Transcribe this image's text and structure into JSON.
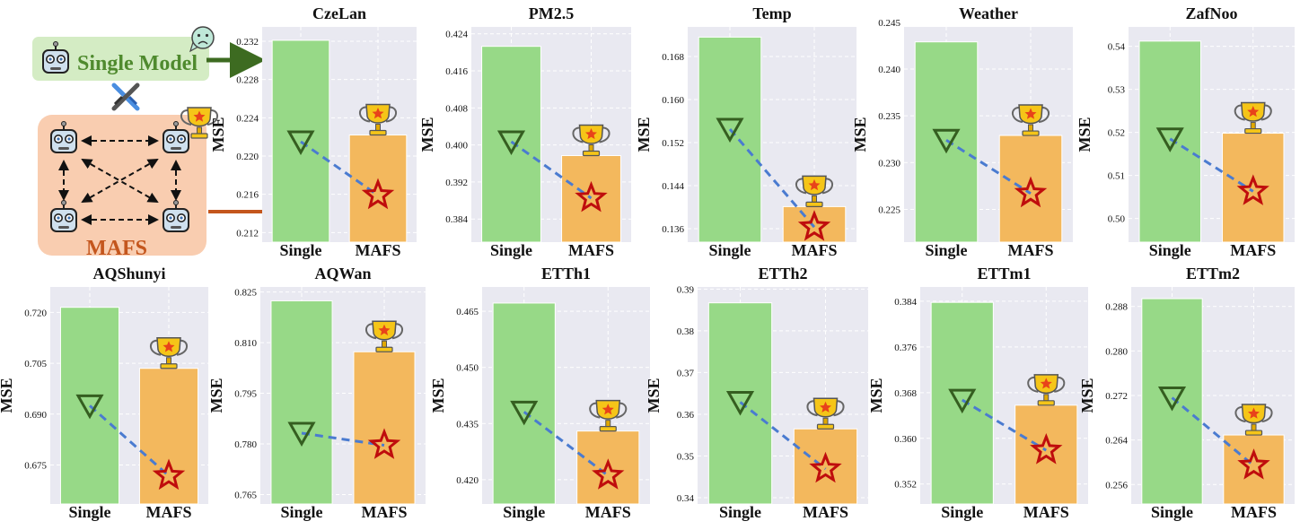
{
  "diagram": {
    "single_label": "Single Model",
    "mafs_label": "MAFS",
    "colors": {
      "single_box": "#d4ecc4",
      "single_text": "#4f8a2e",
      "mafs_box": "#f9cdb0",
      "mafs_text": "#c4561d",
      "arrow_single": "#3d6b21",
      "arrow_mafs": "#c4561d"
    },
    "icons": [
      "robot-icon",
      "sad-face-icon",
      "crossed-swords-icon",
      "trophy-icon"
    ]
  },
  "colors": {
    "single_bar": "#97d987",
    "mafs_bar": "#f3b85d",
    "plot_bg": "#e9e9f1",
    "triangle": "#355e20",
    "star": "#bf0d0d",
    "dashed_line": "#4a7bd0"
  },
  "chart_data": [
    {
      "type": "bar",
      "title": "CzeLan",
      "ylabel": "MSE",
      "categories": [
        "Single",
        "MAFS"
      ],
      "values": [
        0.2321,
        0.2222
      ],
      "ylim": [
        0.211,
        0.2335
      ],
      "yticks": [
        "0.212",
        "0.216",
        "0.220",
        "0.224",
        "0.228",
        "0.232"
      ],
      "markers": {
        "triangle": 0.2215,
        "star": 0.2159
      }
    },
    {
      "type": "bar",
      "title": "PM2.5",
      "ylabel": "MSE",
      "categories": [
        "Single",
        "MAFS"
      ],
      "values": [
        0.4213,
        0.3977
      ],
      "ylim": [
        0.379,
        0.4255
      ],
      "yticks": [
        "0.384",
        "0.392",
        "0.400",
        "0.408",
        "0.416",
        "0.424"
      ],
      "markers": {
        "triangle": 0.4007,
        "star": 0.3885
      }
    },
    {
      "type": "bar",
      "title": "Temp",
      "ylabel": "MSE",
      "categories": [
        "Single",
        "MAFS"
      ],
      "values": [
        0.1716,
        0.1401
      ],
      "ylim": [
        0.1335,
        0.1735
      ],
      "yticks": [
        "0.136",
        "0.144",
        "0.152",
        "0.160",
        "0.168"
      ],
      "markers": {
        "triangle": 0.1545,
        "star": 0.1363
      }
    },
    {
      "type": "bar",
      "title": "Weather",
      "ylabel": "MSE",
      "categories": [
        "Single",
        "MAFS"
      ],
      "values": [
        0.2429,
        0.2329
      ],
      "ylim": [
        0.2215,
        0.2445
      ],
      "yticks": [
        "0.225",
        "0.230",
        "0.235",
        "0.240",
        "0.245"
      ],
      "markers": {
        "triangle": 0.2324,
        "star": 0.2267
      }
    },
    {
      "type": "bar",
      "title": "ZafNoo",
      "ylabel": "MSE",
      "categories": [
        "Single",
        "MAFS"
      ],
      "values": [
        0.5412,
        0.5198
      ],
      "ylim": [
        0.4945,
        0.5445
      ],
      "yticks": [
        "0.50",
        "0.51",
        "0.52",
        "0.53",
        "0.54"
      ],
      "markers": {
        "triangle": 0.5185,
        "star": 0.5063
      }
    },
    {
      "type": "bar",
      "title": "AQShunyi",
      "ylabel": "MSE",
      "categories": [
        "Single",
        "MAFS"
      ],
      "values": [
        0.7215,
        0.7035
      ],
      "ylim": [
        0.6635,
        0.7275
      ],
      "yticks": [
        "0.675",
        "0.690",
        "0.705",
        "0.720"
      ],
      "markers": {
        "triangle": 0.6925,
        "star": 0.6718
      }
    },
    {
      "type": "bar",
      "title": "AQWan",
      "ylabel": "MSE",
      "categories": [
        "Single",
        "MAFS"
      ],
      "values": [
        0.8224,
        0.8073
      ],
      "ylim": [
        0.7622,
        0.8265
      ],
      "yticks": [
        "0.765",
        "0.780",
        "0.795",
        "0.810",
        "0.825"
      ],
      "markers": {
        "triangle": 0.7832,
        "star": 0.7796
      }
    },
    {
      "type": "bar",
      "title": "ETTh1",
      "ylabel": "MSE",
      "categories": [
        "Single",
        "MAFS"
      ],
      "values": [
        0.4672,
        0.433
      ],
      "ylim": [
        0.4135,
        0.4715
      ],
      "yticks": [
        "0.420",
        "0.435",
        "0.450",
        "0.465"
      ],
      "markers": {
        "triangle": 0.4381,
        "star": 0.4211
      }
    },
    {
      "type": "bar",
      "title": "ETTh2",
      "ylabel": "MSE",
      "categories": [
        "Single",
        "MAFS"
      ],
      "values": [
        0.3867,
        0.3565
      ],
      "ylim": [
        0.3385,
        0.3905
      ],
      "yticks": [
        "0.34",
        "0.35",
        "0.36",
        "0.37",
        "0.38",
        "0.39"
      ],
      "markers": {
        "triangle": 0.3629,
        "star": 0.3469
      }
    },
    {
      "type": "bar",
      "title": "ETTm1",
      "ylabel": "MSE",
      "categories": [
        "Single",
        "MAFS"
      ],
      "values": [
        0.3838,
        0.3658
      ],
      "ylim": [
        0.3485,
        0.3865
      ],
      "yticks": [
        "0.352",
        "0.360",
        "0.368",
        "0.376",
        "0.384"
      ],
      "markers": {
        "triangle": 0.3667,
        "star": 0.3579
      }
    },
    {
      "type": "bar",
      "title": "ETTm2",
      "ylabel": "MSE",
      "categories": [
        "Single",
        "MAFS"
      ],
      "values": [
        0.2894,
        0.2649
      ],
      "ylim": [
        0.2525,
        0.2915
      ],
      "yticks": [
        "0.256",
        "0.264",
        "0.272",
        "0.280",
        "0.288"
      ],
      "markers": {
        "triangle": 0.2716,
        "star": 0.2594
      }
    }
  ]
}
